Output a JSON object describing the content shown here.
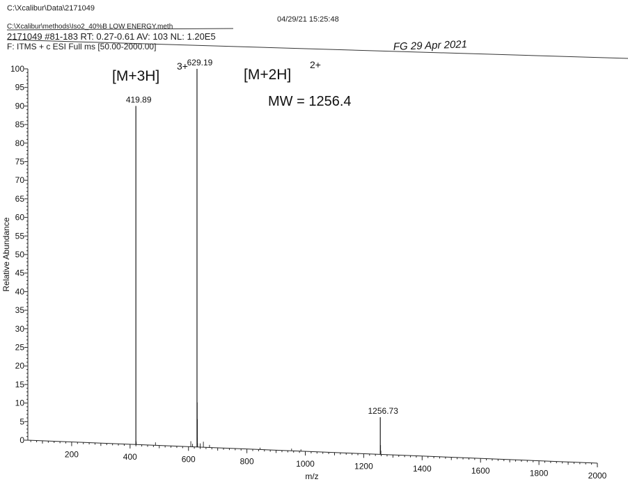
{
  "header": {
    "data_path": "C:\\Xcalibur\\Data\\2171049",
    "datetime": "04/29/21 15:25:48",
    "method_path": "C:\\Xcalibur\\methods\\Iso2_40%B LOW ENERGY.meth",
    "scan_info": "2171049 #81-183  RT: 0.27-0.61  AV: 103  NL: 1.20E5",
    "filter": "F: ITMS + c ESI Full ms [50.00-2000.00]"
  },
  "annotations": {
    "m3h": "[M+3H]",
    "m3h_charge": "3+",
    "m2h": "[M+2H]",
    "m2h_charge": "2+",
    "mw": "MW = 1256.4",
    "signature": "FG 29 Apr 2021"
  },
  "chart_data": {
    "type": "line",
    "subtype": "mass-spectrum-sticks",
    "xlabel": "m/z",
    "ylabel": "Relative Abundance",
    "xlim": [
      50,
      2000
    ],
    "ylim": [
      0,
      100
    ],
    "xticks": [
      200,
      400,
      600,
      800,
      1000,
      1200,
      1400,
      1600,
      1800,
      2000
    ],
    "yticks": [
      0,
      5,
      10,
      15,
      20,
      25,
      30,
      35,
      40,
      45,
      50,
      55,
      60,
      65,
      70,
      75,
      80,
      85,
      90,
      95,
      100
    ],
    "grid": false,
    "peaks": [
      {
        "mz": 419.89,
        "intensity": 90,
        "label": "419.89"
      },
      {
        "mz": 629.19,
        "intensity": 100,
        "label": "629.19"
      },
      {
        "mz": 1256.73,
        "intensity": 10,
        "label": "1256.73"
      },
      {
        "mz": 420.4,
        "intensity": 1
      },
      {
        "mz": 421.2,
        "intensity": 0.6
      },
      {
        "mz": 487.0,
        "intensity": 0.8
      },
      {
        "mz": 608.0,
        "intensity": 1.5
      },
      {
        "mz": 614.0,
        "intensity": 0.8
      },
      {
        "mz": 629.69,
        "intensity": 12
      },
      {
        "mz": 630.19,
        "intensity": 7.5
      },
      {
        "mz": 630.69,
        "intensity": 2.5
      },
      {
        "mz": 631.2,
        "intensity": 1
      },
      {
        "mz": 640.0,
        "intensity": 1
      },
      {
        "mz": 651.0,
        "intensity": 1.5
      },
      {
        "mz": 672.0,
        "intensity": 0.7
      },
      {
        "mz": 845.0,
        "intensity": 0.5
      },
      {
        "mz": 953.0,
        "intensity": 0.6
      },
      {
        "mz": 985.0,
        "intensity": 0.5
      },
      {
        "mz": 1257.73,
        "intensity": 2.5
      },
      {
        "mz": 1258.73,
        "intensity": 1
      }
    ]
  }
}
